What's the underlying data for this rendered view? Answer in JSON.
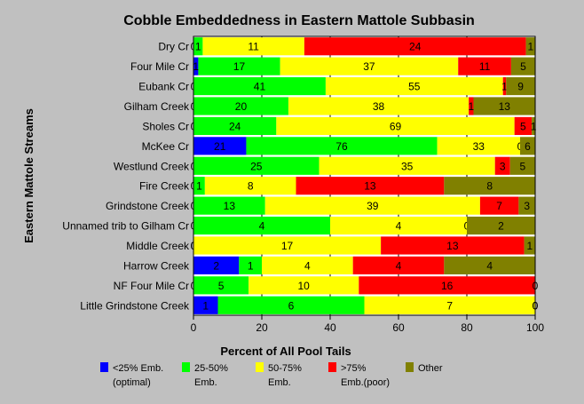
{
  "chart_data": {
    "type": "bar",
    "orientation": "horizontal",
    "stacked": "percent",
    "title": "Cobble Embeddedness in Eastern Mattole Subbasin",
    "xlabel": "Percent of All Pool Tails",
    "ylabel": "Eastern Mattole Streams",
    "xlim": [
      0,
      100
    ],
    "xticks": [
      "0",
      "20",
      "40",
      "60",
      "80",
      "100"
    ],
    "grid": true,
    "legend_position": "bottom",
    "categories": [
      "Dry Cr",
      "Four Mile Cr",
      "Eubank Cr",
      "Gilham Creek",
      "Sholes Cr",
      "McKee Cr",
      "Westlund Creek",
      "Fire Creek",
      "Grindstone Creek",
      "Unnamed trib to Gilham Cr",
      "Middle Creek",
      "Harrow Creek",
      "NF Four Mile Cr",
      "Little Grindstone Creek"
    ],
    "series": [
      {
        "name": "<25% Emb. (optimal)",
        "legend_lines": [
          "<25% Emb.",
          "(optimal)"
        ],
        "color": "#0000ff",
        "values": [
          0,
          1,
          0,
          0,
          0,
          21,
          0,
          0,
          0,
          0,
          0,
          2,
          0,
          1
        ]
      },
      {
        "name": "25-50% Emb.",
        "legend_lines": [
          "25-50%",
          "Emb."
        ],
        "color": "#00ff00",
        "values": [
          1,
          17,
          41,
          20,
          24,
          76,
          25,
          1,
          13,
          4,
          0,
          1,
          5,
          6
        ]
      },
      {
        "name": "50-75% Emb.",
        "legend_lines": [
          "50-75%",
          "Emb."
        ],
        "color": "#ffff00",
        "values": [
          11,
          37,
          55,
          38,
          69,
          33,
          35,
          8,
          39,
          4,
          17,
          4,
          10,
          7
        ]
      },
      {
        "name": ">75% Emb.(poor)",
        "legend_lines": [
          ">75%",
          "Emb.(poor)"
        ],
        "color": "#ff0000",
        "values": [
          24,
          11,
          1,
          1,
          5,
          0,
          3,
          13,
          7,
          0,
          13,
          4,
          16,
          0
        ]
      },
      {
        "name": "Other",
        "legend_lines": [
          "Other"
        ],
        "color": "#808000",
        "values": [
          1,
          5,
          9,
          13,
          1,
          6,
          5,
          8,
          3,
          2,
          1,
          4,
          0,
          0
        ]
      }
    ]
  }
}
